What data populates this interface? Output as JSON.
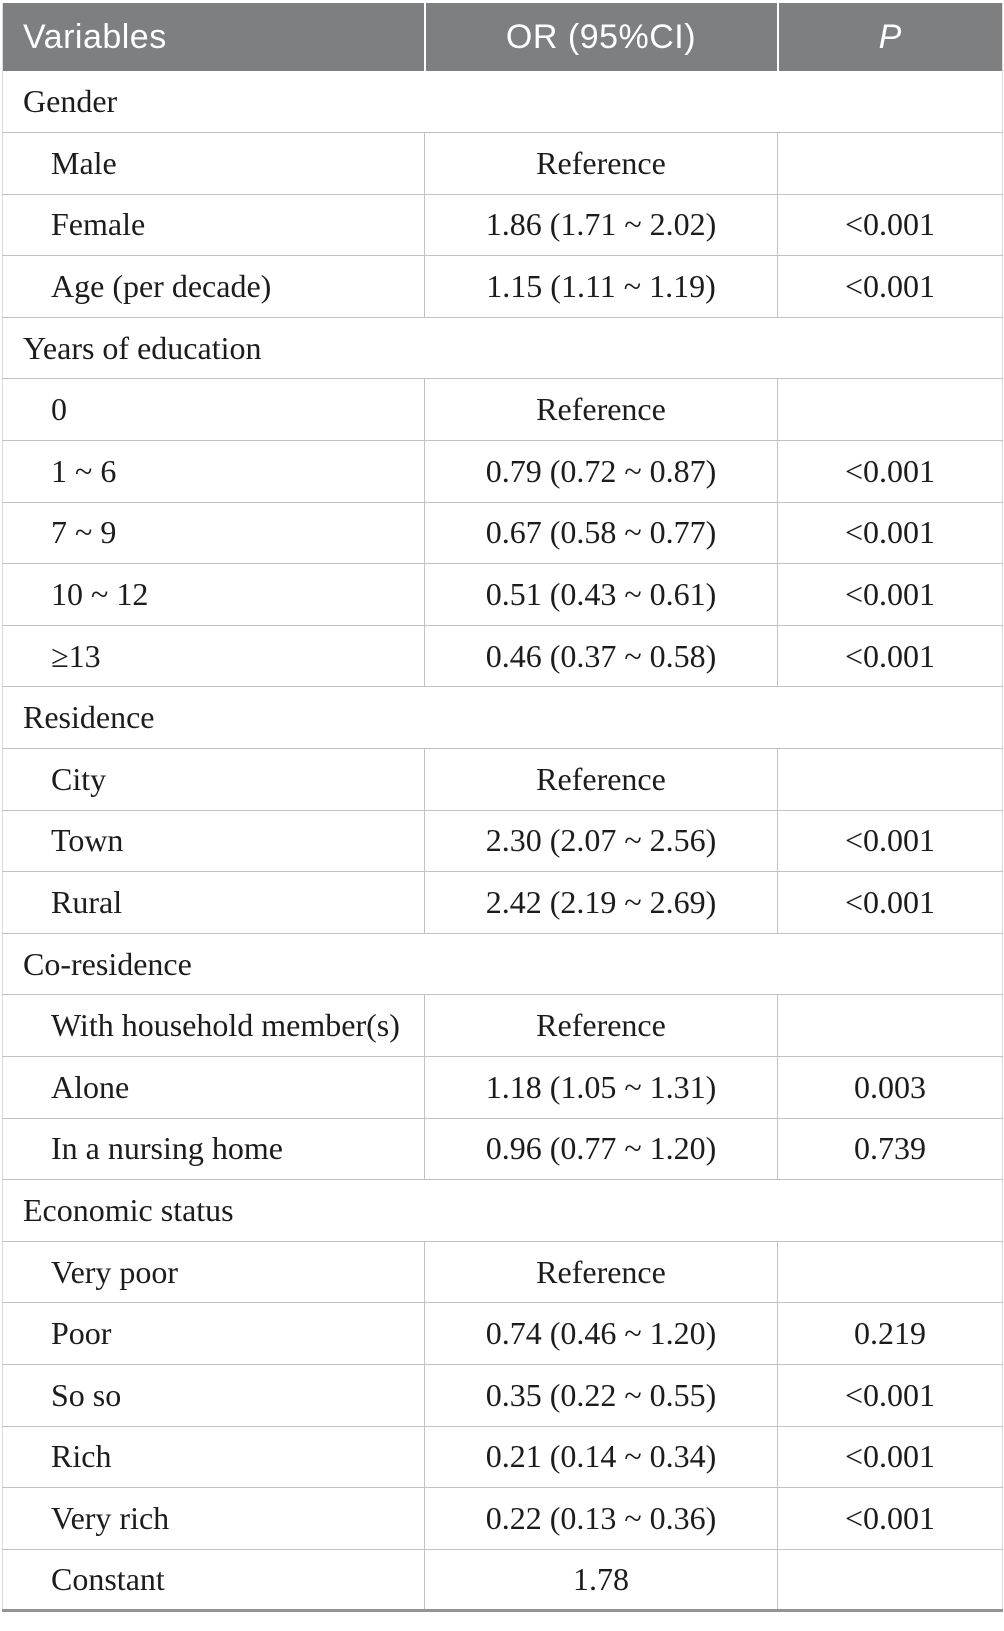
{
  "table": {
    "header": {
      "variables": "Variables",
      "or_ci": "OR (95%CI)",
      "p": "P"
    },
    "colors": {
      "header_bg": "#7d7f80",
      "header_text": "#ffffff",
      "body_text": "#1c1c1c",
      "grid_line": "#c2c2c2",
      "bottom_rule": "#949494"
    },
    "rows": [
      {
        "type": "category",
        "label": "Gender",
        "or_ci": "",
        "p": ""
      },
      {
        "type": "item",
        "label": "Male",
        "or_ci": "Reference",
        "p": ""
      },
      {
        "type": "item",
        "label": "Female",
        "or_ci": "1.86 (1.71 ~ 2.02)",
        "p": "<0.001"
      },
      {
        "type": "item",
        "label": "Age (per decade)",
        "or_ci": "1.15 (1.11 ~ 1.19)",
        "p": "<0.001"
      },
      {
        "type": "category",
        "label": "Years of education",
        "or_ci": "",
        "p": ""
      },
      {
        "type": "item",
        "label": "0",
        "or_ci": "Reference",
        "p": ""
      },
      {
        "type": "item",
        "label": "1 ~ 6",
        "or_ci": "0.79 (0.72 ~ 0.87)",
        "p": "<0.001"
      },
      {
        "type": "item",
        "label": "7 ~ 9",
        "or_ci": "0.67 (0.58 ~ 0.77)",
        "p": "<0.001"
      },
      {
        "type": "item",
        "label": "10 ~ 12",
        "or_ci": "0.51 (0.43 ~ 0.61)",
        "p": "<0.001"
      },
      {
        "type": "item",
        "label": "≥13",
        "or_ci": "0.46 (0.37 ~ 0.58)",
        "p": "<0.001"
      },
      {
        "type": "category",
        "label": "Residence",
        "or_ci": "",
        "p": ""
      },
      {
        "type": "item",
        "label": "City",
        "or_ci": "Reference",
        "p": ""
      },
      {
        "type": "item",
        "label": "Town",
        "or_ci": "2.30 (2.07 ~ 2.56)",
        "p": "<0.001"
      },
      {
        "type": "item",
        "label": "Rural",
        "or_ci": "2.42 (2.19 ~ 2.69)",
        "p": "<0.001"
      },
      {
        "type": "category",
        "label": "Co-residence",
        "or_ci": "",
        "p": ""
      },
      {
        "type": "item",
        "label": "With household member(s)",
        "or_ci": "Reference",
        "p": ""
      },
      {
        "type": "item",
        "label": "Alone",
        "or_ci": "1.18 (1.05 ~ 1.31)",
        "p": "0.003"
      },
      {
        "type": "item",
        "label": "In a nursing home",
        "or_ci": "0.96 (0.77 ~ 1.20)",
        "p": "0.739"
      },
      {
        "type": "category",
        "label": "Economic status",
        "or_ci": "",
        "p": ""
      },
      {
        "type": "item",
        "label": "Very poor",
        "or_ci": "Reference",
        "p": ""
      },
      {
        "type": "item",
        "label": "Poor",
        "or_ci": "0.74 (0.46 ~ 1.20)",
        "p": "0.219"
      },
      {
        "type": "item",
        "label": "So so",
        "or_ci": "0.35 (0.22 ~ 0.55)",
        "p": "<0.001"
      },
      {
        "type": "item",
        "label": "Rich",
        "or_ci": "0.21 (0.14 ~ 0.34)",
        "p": "<0.001"
      },
      {
        "type": "item",
        "label": "Very rich",
        "or_ci": "0.22 (0.13 ~ 0.36)",
        "p": "<0.001"
      },
      {
        "type": "item",
        "label": "Constant",
        "or_ci": "1.78",
        "p": ""
      }
    ]
  }
}
